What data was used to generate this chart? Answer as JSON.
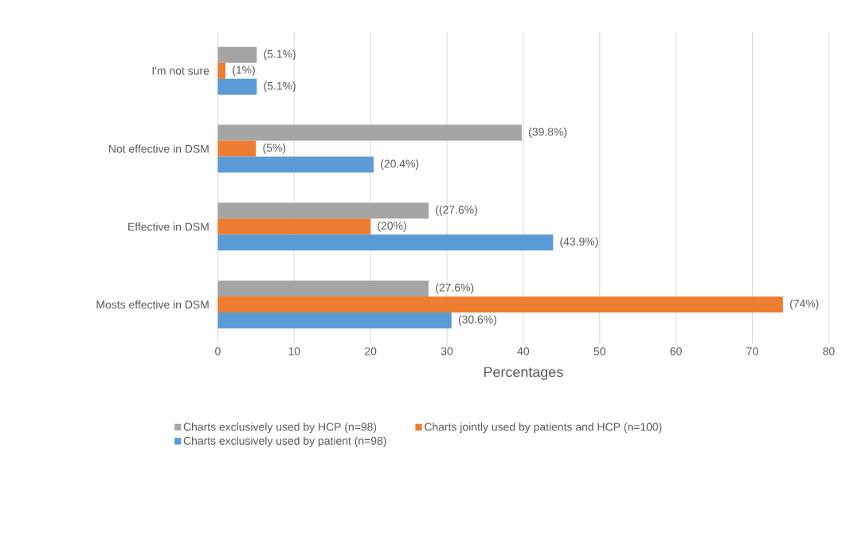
{
  "chart_data": {
    "type": "bar",
    "orientation": "horizontal",
    "xlabel": "Percentages",
    "categories": [
      "I'm not sure",
      "Not effective in DSM",
      "Effective in DSM",
      "Mosts effective in DSM"
    ],
    "series": [
      {
        "name": "Charts exclusively used by HCP (n=98)",
        "color": "#a5a5a5",
        "values": [
          5.1,
          39.8,
          27.6,
          27.6
        ],
        "value_labels": [
          "(5.1%)",
          "(39.8%)",
          "((27.6%)",
          "(27.6%)"
        ]
      },
      {
        "name": "Charts jointly used by patients and HCP (n=100)",
        "color": "#ed7d31",
        "values": [
          1,
          5,
          20,
          74
        ],
        "value_labels": [
          "(1%)",
          "(5%)",
          "(20%)",
          "(74%)"
        ]
      },
      {
        "name": "Charts exclusively used by patient (n=98)",
        "color": "#5b9bd5",
        "values": [
          5.1,
          20.4,
          43.9,
          30.6
        ],
        "value_labels": [
          "(5.1%)",
          "(20.4%)",
          "(43.9%)",
          "(30.6%)"
        ]
      }
    ],
    "xlim": [
      0,
      80
    ],
    "xticks": [
      0,
      10,
      20,
      30,
      40,
      50,
      60,
      70,
      80
    ],
    "grid": "x",
    "legend": "bottom"
  }
}
